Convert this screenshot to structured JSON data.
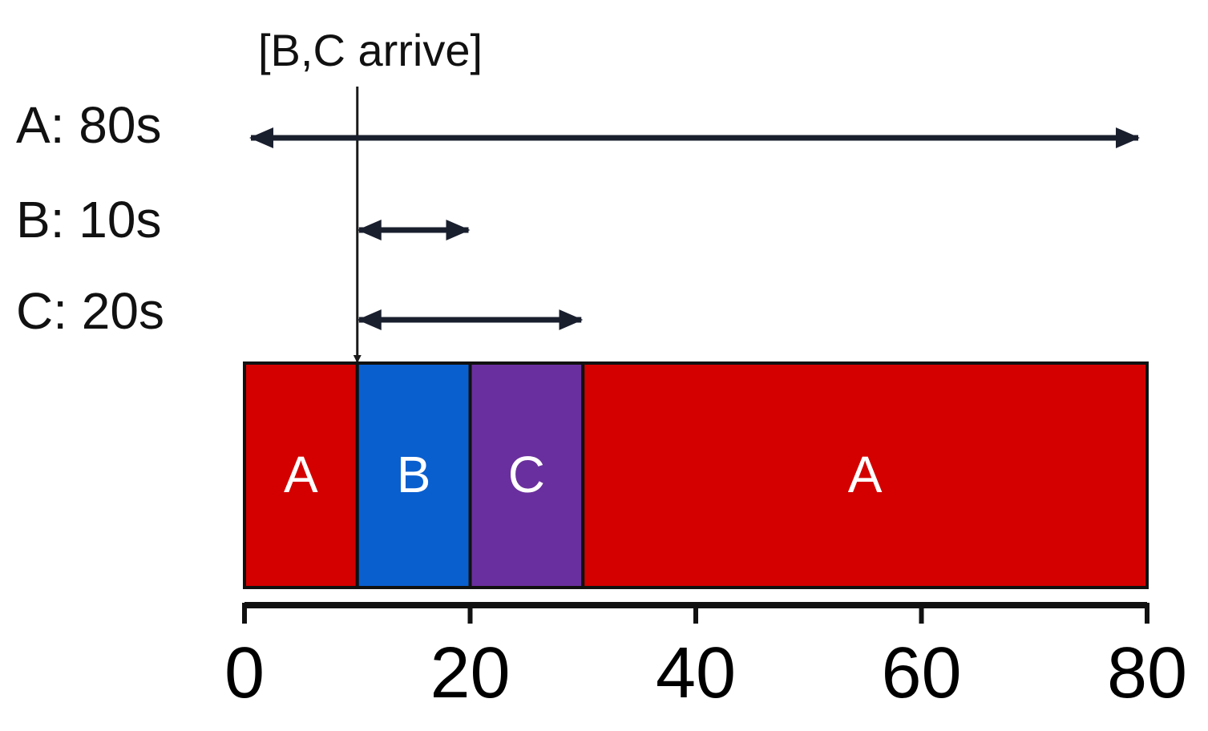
{
  "arrival_annotation": {
    "label": "[B,C arrive]",
    "time": 10
  },
  "jobs": [
    {
      "id": "A",
      "label": "A: 80s",
      "start": 0,
      "end": 80
    },
    {
      "id": "B",
      "label": "B: 10s",
      "start": 10,
      "end": 20
    },
    {
      "id": "C",
      "label": "C: 20s",
      "start": 10,
      "end": 30
    }
  ],
  "schedule": [
    {
      "label": "A",
      "start": 0,
      "end": 10,
      "color": "#d40000"
    },
    {
      "label": "B",
      "start": 10,
      "end": 20,
      "color": "#0a5fcf"
    },
    {
      "label": "C",
      "start": 20,
      "end": 30,
      "color": "#6a2f9e"
    },
    {
      "label": "A",
      "start": 30,
      "end": 80,
      "color": "#d40000"
    }
  ],
  "axis": {
    "min": 0,
    "max": 80,
    "ticks": [
      "0",
      "20",
      "40",
      "60",
      "80"
    ]
  }
}
